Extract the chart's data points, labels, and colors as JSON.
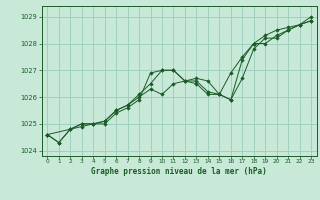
{
  "title": "Graphe pression niveau de la mer (hPa)",
  "background_color": "#c8e8d8",
  "plot_background": "#c8e8d8",
  "grid_color": "#99ccbb",
  "line_color": "#1a5c28",
  "marker_color": "#1a5c28",
  "xlim": [
    -0.5,
    23.5
  ],
  "ylim": [
    1023.8,
    1029.4
  ],
  "yticks": [
    1024,
    1025,
    1026,
    1027,
    1028,
    1029
  ],
  "xticks": [
    0,
    1,
    2,
    3,
    4,
    5,
    6,
    7,
    8,
    9,
    10,
    11,
    12,
    13,
    14,
    15,
    16,
    17,
    18,
    19,
    20,
    21,
    22,
    23
  ],
  "series": [
    {
      "x": [
        0,
        1,
        2,
        3,
        4,
        5,
        6,
        7,
        8,
        9,
        10,
        11,
        12,
        13,
        14,
        15,
        16,
        17,
        18,
        19,
        20,
        21,
        22,
        23
      ],
      "y": [
        1024.6,
        1024.3,
        1024.8,
        1024.9,
        1025.0,
        1025.0,
        1025.4,
        1025.6,
        1025.9,
        1026.9,
        1027.0,
        1027.0,
        1026.6,
        1026.5,
        1026.1,
        1026.1,
        1025.9,
        1026.7,
        1027.8,
        1028.2,
        1028.2,
        1028.5,
        1028.7,
        1028.85
      ]
    },
    {
      "x": [
        0,
        1,
        2,
        3,
        4,
        5,
        6,
        7,
        8,
        9,
        10,
        11,
        12,
        13,
        14,
        15,
        16,
        17,
        18,
        19,
        20,
        21,
        22,
        23
      ],
      "y": [
        1024.6,
        1024.3,
        1024.8,
        1025.0,
        1025.0,
        1025.1,
        1025.5,
        1025.7,
        1026.0,
        1026.3,
        1026.1,
        1026.5,
        1026.6,
        1026.7,
        1026.6,
        1026.1,
        1026.9,
        1027.5,
        1028.0,
        1028.3,
        1028.5,
        1028.6,
        1028.7,
        1028.85
      ]
    },
    {
      "x": [
        0,
        2,
        3,
        4,
        5,
        6,
        7,
        8,
        9,
        10,
        11,
        12,
        13,
        14,
        15,
        16,
        17,
        18,
        19,
        20,
        21,
        22,
        23
      ],
      "y": [
        1024.6,
        1024.8,
        1025.0,
        1025.0,
        1025.1,
        1025.5,
        1025.7,
        1026.1,
        1026.5,
        1027.0,
        1027.0,
        1026.6,
        1026.6,
        1026.2,
        1026.1,
        1025.9,
        1027.4,
        1028.0,
        1028.0,
        1028.3,
        1028.5,
        1028.7,
        1029.0
      ]
    }
  ]
}
